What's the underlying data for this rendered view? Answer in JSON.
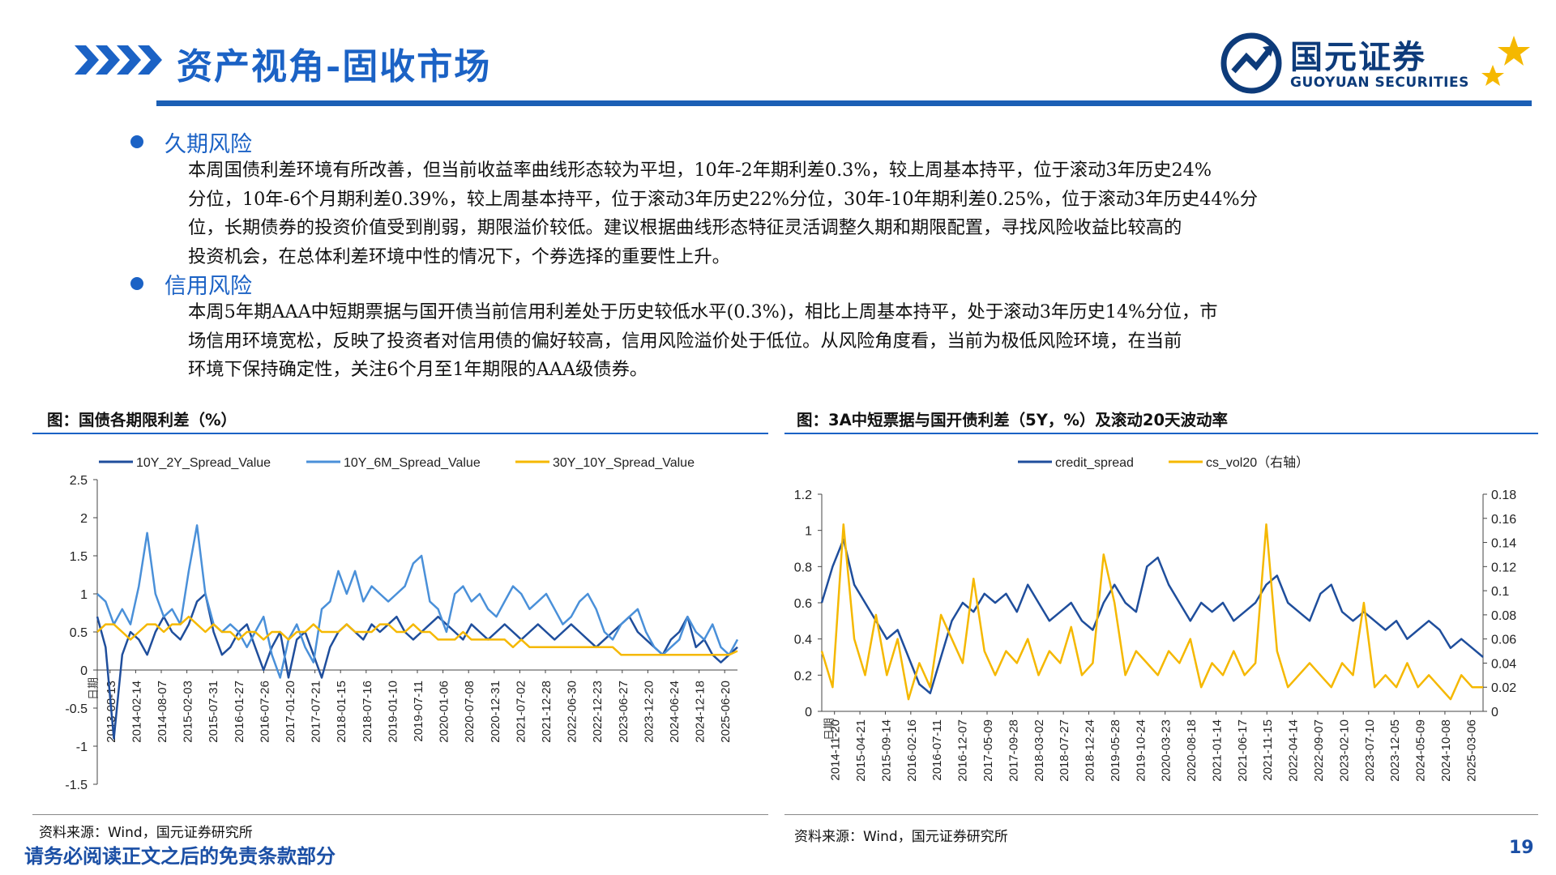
{
  "header": {
    "title": "资产视角-固收市场",
    "logo_cn": "国元证券",
    "logo_en": "GUOYUAN SECURITIES"
  },
  "sections": [
    {
      "heading": "久期风险",
      "lines": [
        "本周国债利差环境有所改善，但当前收益率曲线形态较为平坦，10年-2年期利差0.3%，较上周基本持平，位于滚动3年历史24%",
        "分位，10年-6个月期利差0.39%，较上周基本持平，位于滚动3年历史22%分位，30年-10年期利差0.25%，位于滚动3年历史44%分",
        "位，长期债券的投资价值受到削弱，期限溢价较低。建议根据曲线形态特征灵活调整久期和期限配置，寻找风险收益比较高的",
        "投资机会，在总体利差环境中性的情况下，个券选择的重要性上升。"
      ]
    },
    {
      "heading": "信用风险",
      "lines": [
        "本周5年期AAA中短期票据与国开债当前信用利差处于历史较低水平(0.3%)，相比上周基本持平，处于滚动3年历史14%分位，市",
        "场信用环境宽松，反映了投资者对信用债的偏好较高，信用风险溢价处于低位。从风险角度看，当前为极低风险环境，在当前",
        "环境下保持确定性，关注6个月至1年期限的AAA级债券。"
      ]
    }
  ],
  "chart_left": {
    "caption": "图：国债各期限利差（%）",
    "source": "资料来源：Wind，国元证券研究所"
  },
  "chart_right": {
    "caption": "图：3A中短票据与国开债利差（5Y，%）及滚动20天波动率",
    "source": "资料来源：Wind，国元证券研究所"
  },
  "footer": {
    "disclaimer": "请务必阅读正文之后的免责条款部分",
    "page_number": "19"
  },
  "colors": {
    "brand_blue": "#1b62c5",
    "series_dark": "#1f4e9c",
    "series_light": "#4a90d9",
    "series_gold": "#f5b800"
  },
  "chart_data": [
    {
      "type": "line",
      "x_axis_label": "日期",
      "x_ticks": [
        "2013-08-13",
        "2014-02-14",
        "2014-08-07",
        "2015-02-03",
        "2015-07-31",
        "2016-01-27",
        "2016-07-26",
        "2017-01-20",
        "2017-07-21",
        "2018-01-15",
        "2018-07-16",
        "2019-01-10",
        "2019-07-11",
        "2020-01-06",
        "2020-07-08",
        "2020-12-31",
        "2021-07-02",
        "2021-12-28",
        "2022-06-30",
        "2022-12-23",
        "2023-06-27",
        "2023-12-20",
        "2024-06-24",
        "2024-12-18",
        "2025-06-20"
      ],
      "y_ticks": [
        "2.5",
        "2",
        "1.5",
        "1",
        "0.5",
        "0",
        "-0.5",
        "-1",
        "-1.5"
      ],
      "ylim": [
        -1.5,
        2.5
      ],
      "legend_position": "top",
      "series": [
        {
          "name": "10Y_2Y_Spread_Value",
          "color": "#1f4e9c",
          "values": [
            0.7,
            0.3,
            -0.9,
            0.2,
            0.5,
            0.4,
            0.2,
            0.5,
            0.7,
            0.5,
            0.4,
            0.6,
            0.9,
            1.0,
            0.5,
            0.2,
            0.3,
            0.5,
            0.6,
            0.3,
            0.0,
            0.3,
            0.5,
            -0.1,
            0.4,
            0.5,
            0.2,
            -0.1,
            0.3,
            0.5,
            0.6,
            0.5,
            0.4,
            0.6,
            0.5,
            0.6,
            0.7,
            0.5,
            0.4,
            0.5,
            0.6,
            0.7,
            0.6,
            0.5,
            0.4,
            0.6,
            0.5,
            0.4,
            0.5,
            0.6,
            0.5,
            0.4,
            0.5,
            0.6,
            0.5,
            0.4,
            0.5,
            0.6,
            0.5,
            0.4,
            0.3,
            0.4,
            0.5,
            0.6,
            0.7,
            0.5,
            0.4,
            0.3,
            0.2,
            0.4,
            0.5,
            0.7,
            0.3,
            0.4,
            0.2,
            0.1,
            0.2,
            0.3
          ]
        },
        {
          "name": "10Y_6M_Spread_Value",
          "color": "#4a90d9",
          "values": [
            1.0,
            0.9,
            0.6,
            0.8,
            0.6,
            1.1,
            1.8,
            1.0,
            0.7,
            0.8,
            0.6,
            1.3,
            1.9,
            1.0,
            0.6,
            0.5,
            0.6,
            0.5,
            0.3,
            0.5,
            0.7,
            0.2,
            -0.1,
            0.4,
            0.6,
            0.3,
            0.1,
            0.8,
            0.9,
            1.3,
            1.0,
            1.3,
            0.9,
            1.1,
            1.0,
            0.9,
            1.0,
            1.1,
            1.4,
            1.5,
            0.9,
            0.8,
            0.5,
            1.0,
            1.1,
            0.9,
            1.0,
            0.8,
            0.7,
            0.9,
            1.1,
            1.0,
            0.8,
            0.9,
            1.0,
            0.8,
            0.6,
            0.7,
            0.9,
            1.0,
            0.8,
            0.5,
            0.4,
            0.6,
            0.7,
            0.8,
            0.5,
            0.3,
            0.2,
            0.3,
            0.4,
            0.7,
            0.5,
            0.4,
            0.6,
            0.3,
            0.2,
            0.4
          ]
        },
        {
          "name": "30Y_10Y_Spread_Value",
          "color": "#f5b800",
          "values": [
            0.5,
            0.6,
            0.6,
            0.5,
            0.4,
            0.5,
            0.6,
            0.6,
            0.5,
            0.6,
            0.6,
            0.7,
            0.6,
            0.5,
            0.6,
            0.5,
            0.5,
            0.4,
            0.5,
            0.5,
            0.4,
            0.5,
            0.5,
            0.4,
            0.5,
            0.5,
            0.6,
            0.5,
            0.5,
            0.5,
            0.6,
            0.5,
            0.5,
            0.5,
            0.6,
            0.6,
            0.5,
            0.5,
            0.6,
            0.5,
            0.5,
            0.4,
            0.4,
            0.4,
            0.5,
            0.4,
            0.4,
            0.4,
            0.4,
            0.4,
            0.3,
            0.4,
            0.3,
            0.3,
            0.3,
            0.3,
            0.3,
            0.3,
            0.3,
            0.3,
            0.3,
            0.3,
            0.3,
            0.2,
            0.2,
            0.2,
            0.2,
            0.2,
            0.2,
            0.2,
            0.2,
            0.2,
            0.2,
            0.2,
            0.2,
            0.2,
            0.2,
            0.25
          ]
        }
      ]
    },
    {
      "type": "line",
      "x_axis_label": "日期",
      "x_ticks": [
        "2014-11-20",
        "2015-04-21",
        "2015-09-14",
        "2016-02-16",
        "2016-07-11",
        "2016-12-07",
        "2017-05-09",
        "2017-09-28",
        "2018-03-02",
        "2018-07-27",
        "2018-12-24",
        "2019-05-28",
        "2019-10-24",
        "2020-03-23",
        "2020-08-18",
        "2021-01-14",
        "2021-06-17",
        "2021-11-15",
        "2022-04-14",
        "2022-09-07",
        "2023-02-10",
        "2023-07-10",
        "2023-12-05",
        "2024-05-09",
        "2024-10-08",
        "2025-03-06"
      ],
      "y_ticks_left": [
        "1.2",
        "1",
        "0.8",
        "0.6",
        "0.4",
        "0.2",
        "0"
      ],
      "y_ticks_right": [
        "0.18",
        "0.16",
        "0.14",
        "0.12",
        "0.1",
        "0.08",
        "0.06",
        "0.04",
        "0.02",
        "0"
      ],
      "ylim_left": [
        0,
        1.2
      ],
      "ylim_right": [
        0,
        0.18
      ],
      "legend_position": "top",
      "series": [
        {
          "name": "credit_spread",
          "axis": "left",
          "color": "#1f4e9c",
          "values": [
            0.6,
            0.8,
            0.95,
            0.7,
            0.6,
            0.5,
            0.4,
            0.45,
            0.3,
            0.15,
            0.1,
            0.3,
            0.5,
            0.6,
            0.55,
            0.65,
            0.6,
            0.65,
            0.55,
            0.7,
            0.6,
            0.5,
            0.55,
            0.6,
            0.5,
            0.45,
            0.6,
            0.7,
            0.6,
            0.55,
            0.8,
            0.85,
            0.7,
            0.6,
            0.5,
            0.6,
            0.55,
            0.6,
            0.5,
            0.55,
            0.6,
            0.7,
            0.75,
            0.6,
            0.55,
            0.5,
            0.65,
            0.7,
            0.55,
            0.5,
            0.55,
            0.5,
            0.45,
            0.5,
            0.4,
            0.45,
            0.5,
            0.45,
            0.35,
            0.4,
            0.35,
            0.3
          ]
        },
        {
          "name": "cs_vol20（右轴）",
          "axis": "right",
          "color": "#f5b800",
          "values": [
            0.05,
            0.02,
            0.155,
            0.06,
            0.03,
            0.08,
            0.03,
            0.06,
            0.01,
            0.04,
            0.02,
            0.08,
            0.06,
            0.04,
            0.11,
            0.05,
            0.03,
            0.05,
            0.04,
            0.06,
            0.03,
            0.05,
            0.04,
            0.07,
            0.03,
            0.04,
            0.13,
            0.09,
            0.03,
            0.05,
            0.04,
            0.03,
            0.05,
            0.04,
            0.06,
            0.02,
            0.04,
            0.03,
            0.05,
            0.03,
            0.04,
            0.155,
            0.05,
            0.02,
            0.03,
            0.04,
            0.03,
            0.02,
            0.04,
            0.03,
            0.09,
            0.02,
            0.03,
            0.02,
            0.04,
            0.02,
            0.03,
            0.02,
            0.01,
            0.03,
            0.02,
            0.02
          ]
        }
      ]
    }
  ]
}
